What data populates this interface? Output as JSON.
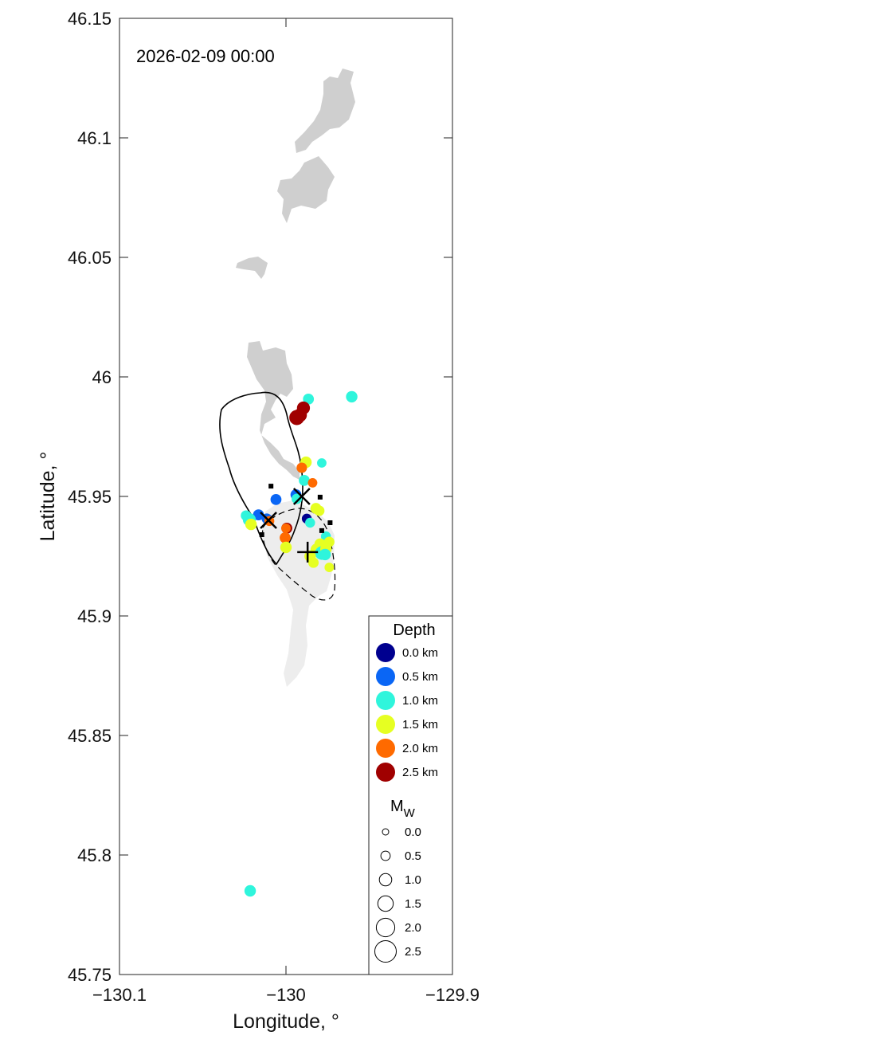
{
  "chart_data": {
    "type": "scatter",
    "timestamp": "2026-02-09 00:00",
    "xlabel": "Longitude, °",
    "ylabel": "Latitude, °",
    "xlim": [
      -130.1,
      -129.9
    ],
    "ylim": [
      45.75,
      46.15
    ],
    "x_ticks": [
      -130.1,
      -130,
      -129.9
    ],
    "x_tick_labels": [
      "−130.1",
      "−130",
      "−129.9"
    ],
    "y_ticks": [
      45.75,
      45.8,
      45.85,
      45.9,
      45.95,
      46,
      46.05,
      46.1,
      46.15
    ],
    "y_tick_labels": [
      "45.75",
      "45.8",
      "45.85",
      "45.9",
      "45.95",
      "46",
      "46.05",
      "46.1",
      "46.15"
    ],
    "depth_legend": {
      "title": "Depth",
      "entries": [
        {
          "label": "0.0 km",
          "depth": 0.0,
          "color": "#00008f"
        },
        {
          "label": "0.5 km",
          "depth": 0.5,
          "color": "#0a66f5"
        },
        {
          "label": "1.0 km",
          "depth": 1.0,
          "color": "#2ff5dc"
        },
        {
          "label": "1.5 km",
          "depth": 1.5,
          "color": "#e6ff22"
        },
        {
          "label": "2.0 km",
          "depth": 2.0,
          "color": "#ff6a00"
        },
        {
          "label": "2.5 km",
          "depth": 2.5,
          "color": "#a00000"
        }
      ]
    },
    "magnitude_legend": {
      "title": "M",
      "title_sub": "W",
      "entries": [
        {
          "label": "0.0",
          "mw": 0.0
        },
        {
          "label": "0.5",
          "mw": 0.5
        },
        {
          "label": "1.0",
          "mw": 1.0
        },
        {
          "label": "1.5",
          "mw": 1.5
        },
        {
          "label": "2.0",
          "mw": 2.0
        },
        {
          "label": "2.5",
          "mw": 2.5
        }
      ]
    },
    "events": [
      {
        "lon": -129.9865,
        "lat": 45.9907,
        "depth": 1.0,
        "mw": 0.9
      },
      {
        "lon": -129.9605,
        "lat": 45.9917,
        "depth": 1.0,
        "mw": 1.0
      },
      {
        "lon": -129.9935,
        "lat": 45.983,
        "depth": 2.5,
        "mw": 1.7
      },
      {
        "lon": -129.9915,
        "lat": 45.984,
        "depth": 2.5,
        "mw": 1.4
      },
      {
        "lon": -129.9895,
        "lat": 45.987,
        "depth": 2.5,
        "mw": 1.3
      },
      {
        "lon": -129.988,
        "lat": 45.9643,
        "depth": 1.5,
        "mw": 1.0
      },
      {
        "lon": -129.9905,
        "lat": 45.962,
        "depth": 2.0,
        "mw": 0.8
      },
      {
        "lon": -129.9785,
        "lat": 45.964,
        "depth": 1.0,
        "mw": 0.6
      },
      {
        "lon": -129.989,
        "lat": 45.9567,
        "depth": 1.0,
        "mw": 0.9
      },
      {
        "lon": -129.984,
        "lat": 45.9557,
        "depth": 2.0,
        "mw": 0.6
      },
      {
        "lon": -129.994,
        "lat": 45.9507,
        "depth": 0.5,
        "mw": 0.9
      },
      {
        "lon": -129.9935,
        "lat": 45.949,
        "depth": 1.0,
        "mw": 0.8
      },
      {
        "lon": -130.006,
        "lat": 45.9487,
        "depth": 0.5,
        "mw": 0.9
      },
      {
        "lon": -130.024,
        "lat": 45.942,
        "depth": 1.0,
        "mw": 0.8
      },
      {
        "lon": -130.0165,
        "lat": 45.9423,
        "depth": 0.5,
        "mw": 0.9
      },
      {
        "lon": -130.022,
        "lat": 45.9403,
        "depth": 1.0,
        "mw": 1.3
      },
      {
        "lon": -130.021,
        "lat": 45.9383,
        "depth": 1.5,
        "mw": 1.0
      },
      {
        "lon": -130.0115,
        "lat": 45.9407,
        "depth": 0.5,
        "mw": 0.8
      },
      {
        "lon": -130.01,
        "lat": 45.9397,
        "depth": 2.0,
        "mw": 0.7
      },
      {
        "lon": -129.9995,
        "lat": 45.9367,
        "depth": 2.5,
        "mw": 0.9
      },
      {
        "lon": -130.0,
        "lat": 45.9367,
        "depth": 2.0,
        "mw": 0.6
      },
      {
        "lon": -130.0005,
        "lat": 45.9327,
        "depth": 2.0,
        "mw": 0.9
      },
      {
        "lon": -130.0,
        "lat": 45.9287,
        "depth": 1.5,
        "mw": 1.0
      },
      {
        "lon": -129.9875,
        "lat": 45.9407,
        "depth": 0.0,
        "mw": 0.7
      },
      {
        "lon": -129.9855,
        "lat": 45.939,
        "depth": 1.0,
        "mw": 0.7
      },
      {
        "lon": -129.982,
        "lat": 45.945,
        "depth": 1.5,
        "mw": 0.9
      },
      {
        "lon": -129.98,
        "lat": 45.944,
        "depth": 1.5,
        "mw": 0.8
      },
      {
        "lon": -129.976,
        "lat": 45.9333,
        "depth": 1.0,
        "mw": 0.7
      },
      {
        "lon": -129.974,
        "lat": 45.931,
        "depth": 1.5,
        "mw": 0.8
      },
      {
        "lon": -129.9795,
        "lat": 45.93,
        "depth": 1.5,
        "mw": 1.0
      },
      {
        "lon": -129.9815,
        "lat": 45.9277,
        "depth": 1.5,
        "mw": 1.2
      },
      {
        "lon": -129.9785,
        "lat": 45.9263,
        "depth": 1.0,
        "mw": 1.4
      },
      {
        "lon": -129.976,
        "lat": 45.928,
        "depth": 1.5,
        "mw": 1.0
      },
      {
        "lon": -129.9765,
        "lat": 45.9257,
        "depth": 1.0,
        "mw": 1.0
      },
      {
        "lon": -129.9855,
        "lat": 45.925,
        "depth": 1.5,
        "mw": 1.0
      },
      {
        "lon": -129.9835,
        "lat": 45.9223,
        "depth": 1.5,
        "mw": 0.8
      },
      {
        "lon": -129.974,
        "lat": 45.9203,
        "depth": 1.5,
        "mw": 0.6
      },
      {
        "lon": -130.0215,
        "lat": 45.785,
        "depth": 1.0,
        "mw": 1.0
      }
    ],
    "reference_marks": [
      {
        "shape": "x",
        "lon": -130.0105,
        "lat": 45.94
      },
      {
        "shape": "x",
        "lon": -129.9905,
        "lat": 45.95
      },
      {
        "shape": "plus",
        "lon": -129.987,
        "lat": 45.9267
      }
    ],
    "small_squares": [
      {
        "lon": -130.009,
        "lat": 45.9543
      },
      {
        "lon": -129.9795,
        "lat": 45.9497
      },
      {
        "lon": -129.9735,
        "lat": 45.939
      },
      {
        "lon": -129.9785,
        "lat": 45.9357
      },
      {
        "lon": -130.0145,
        "lat": 45.934
      }
    ]
  }
}
